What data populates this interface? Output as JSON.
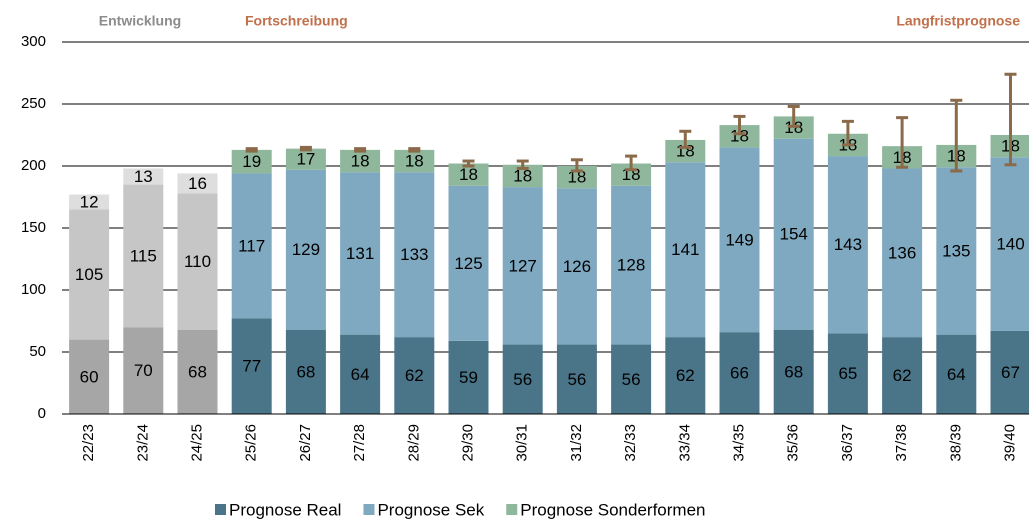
{
  "chart_data": {
    "type": "bar",
    "stacked": true,
    "sections": [
      {
        "label": "Entwicklung",
        "color": "#8c8c8c"
      },
      {
        "label": "Fortschreibung",
        "color": "#c0704a"
      },
      {
        "label": "Langfristprognose",
        "color": "#c0704a"
      }
    ],
    "categories": [
      "22/23",
      "23/24",
      "24/25",
      "25/26",
      "26/27",
      "27/28",
      "28/29",
      "29/30",
      "30/31",
      "31/32",
      "32/33",
      "33/34",
      "34/35",
      "35/36",
      "36/37",
      "37/38",
      "38/39",
      "39/40"
    ],
    "series": [
      {
        "name": "Prognose Real",
        "color": "#4a7589",
        "colors": [
          "#a6a6a6",
          "#a6a6a6",
          "#a6a6a6",
          "#4a7589",
          "#4a7589",
          "#4a7589",
          "#4a7589",
          "#4a7589",
          "#4a7589",
          "#4a7589",
          "#4a7589",
          "#4a7589",
          "#4a7589",
          "#4a7589",
          "#4a7589",
          "#4a7589",
          "#4a7589",
          "#4a7589"
        ],
        "values": [
          60,
          70,
          68,
          77,
          68,
          64,
          62,
          59,
          56,
          56,
          56,
          62,
          66,
          68,
          65,
          62,
          64,
          67
        ]
      },
      {
        "name": "Prognose Sek",
        "color": "#7fa9c0",
        "colors": [
          "#c6c6c6",
          "#c6c6c6",
          "#c6c6c6",
          "#7fa9c0",
          "#7fa9c0",
          "#7fa9c0",
          "#7fa9c0",
          "#7fa9c0",
          "#7fa9c0",
          "#7fa9c0",
          "#7fa9c0",
          "#7fa9c0",
          "#7fa9c0",
          "#7fa9c0",
          "#7fa9c0",
          "#7fa9c0",
          "#7fa9c0",
          "#7fa9c0"
        ],
        "values": [
          105,
          115,
          110,
          117,
          129,
          131,
          133,
          125,
          127,
          126,
          128,
          141,
          149,
          154,
          143,
          136,
          135,
          140
        ]
      },
      {
        "name": "Prognose Sonderformen",
        "color": "#8fb79c",
        "colors": [
          "#dedede",
          "#dedede",
          "#dedede",
          "#8fb79c",
          "#8fb79c",
          "#8fb79c",
          "#8fb79c",
          "#8fb79c",
          "#8fb79c",
          "#8fb79c",
          "#8fb79c",
          "#8fb79c",
          "#8fb79c",
          "#8fb79c",
          "#8fb79c",
          "#8fb79c",
          "#8fb79c",
          "#8fb79c"
        ],
        "values": [
          12,
          13,
          16,
          19,
          17,
          18,
          18,
          18,
          18,
          18,
          18,
          18,
          18,
          18,
          18,
          18,
          18,
          18
        ]
      }
    ],
    "error_color": "#8b6a4a",
    "errors_minus": [
      null,
      null,
      null,
      1,
      1,
      1,
      1,
      2,
      3,
      4,
      5,
      6,
      7,
      8,
      9,
      17,
      21,
      24
    ],
    "errors_plus": [
      null,
      null,
      null,
      1,
      1,
      1,
      1,
      2,
      3,
      5,
      6,
      7,
      7,
      8,
      10,
      23,
      36,
      49
    ],
    "ylim": [
      0,
      300
    ],
    "yticks": [
      0,
      50,
      100,
      150,
      200,
      250,
      300
    ],
    "grid": true
  }
}
